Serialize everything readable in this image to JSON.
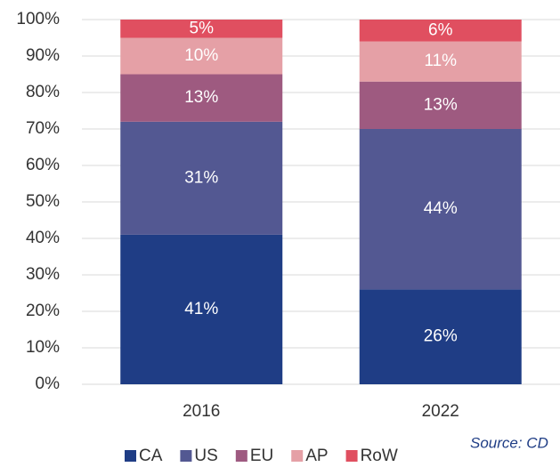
{
  "chart_data": {
    "type": "bar",
    "stacked": true,
    "categories": [
      "2016",
      "2022"
    ],
    "series": [
      {
        "name": "CA",
        "color": "#1f3d85",
        "values": [
          41,
          26
        ],
        "value_labels": [
          "41%",
          "26%"
        ]
      },
      {
        "name": "US",
        "color": "#535892",
        "values": [
          31,
          44
        ],
        "value_labels": [
          "31%",
          "44%"
        ]
      },
      {
        "name": "EU",
        "color": "#9e5a80",
        "values": [
          13,
          13
        ],
        "value_labels": [
          "13%",
          "13%"
        ]
      },
      {
        "name": "AP",
        "color": "#e5a0a6",
        "values": [
          10,
          11
        ],
        "value_labels": [
          "10%",
          "11%"
        ]
      },
      {
        "name": "RoW",
        "color": "#e04f60",
        "values": [
          5,
          6
        ],
        "value_labels": [
          "5%",
          "6%"
        ]
      }
    ],
    "ylim": [
      0,
      100
    ],
    "yticks": [
      {
        "value": 0,
        "label": "0%"
      },
      {
        "value": 10,
        "label": "10%"
      },
      {
        "value": 20,
        "label": "20%"
      },
      {
        "value": 30,
        "label": "30%"
      },
      {
        "value": 40,
        "label": "40%"
      },
      {
        "value": 50,
        "label": "50%"
      },
      {
        "value": 60,
        "label": "60%"
      },
      {
        "value": 70,
        "label": "70%"
      },
      {
        "value": 80,
        "label": "80%"
      },
      {
        "value": 90,
        "label": "90%"
      },
      {
        "value": 100,
        "label": "100%"
      }
    ],
    "grid": true,
    "legend": "bottom",
    "source": "Source: CD"
  }
}
